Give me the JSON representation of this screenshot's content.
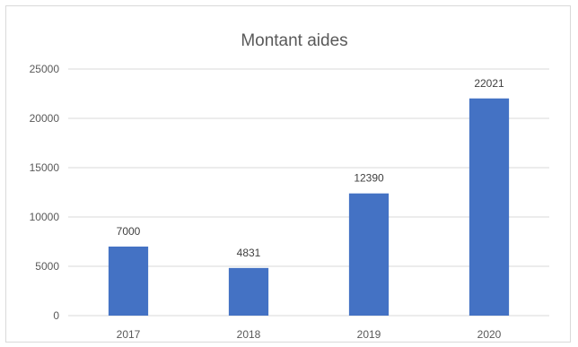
{
  "chart_data": {
    "type": "bar",
    "title": "Montant aides",
    "categories": [
      "2017",
      "2018",
      "2019",
      "2020"
    ],
    "values": [
      7000,
      4831,
      12390,
      22021
    ],
    "data_labels": [
      "7000",
      "4831",
      "12390",
      "22021"
    ],
    "ylim": [
      0,
      25000
    ],
    "yticks": [
      0,
      5000,
      10000,
      15000,
      20000,
      25000
    ],
    "ytick_labels": [
      "0",
      "5000",
      "10000",
      "15000",
      "20000",
      "25000"
    ],
    "xlabel": "",
    "ylabel": "",
    "grid": true,
    "legend": "none",
    "bar_color": "#4472c4",
    "grid_color": "#d9d9d9",
    "text_color": "#595959"
  }
}
